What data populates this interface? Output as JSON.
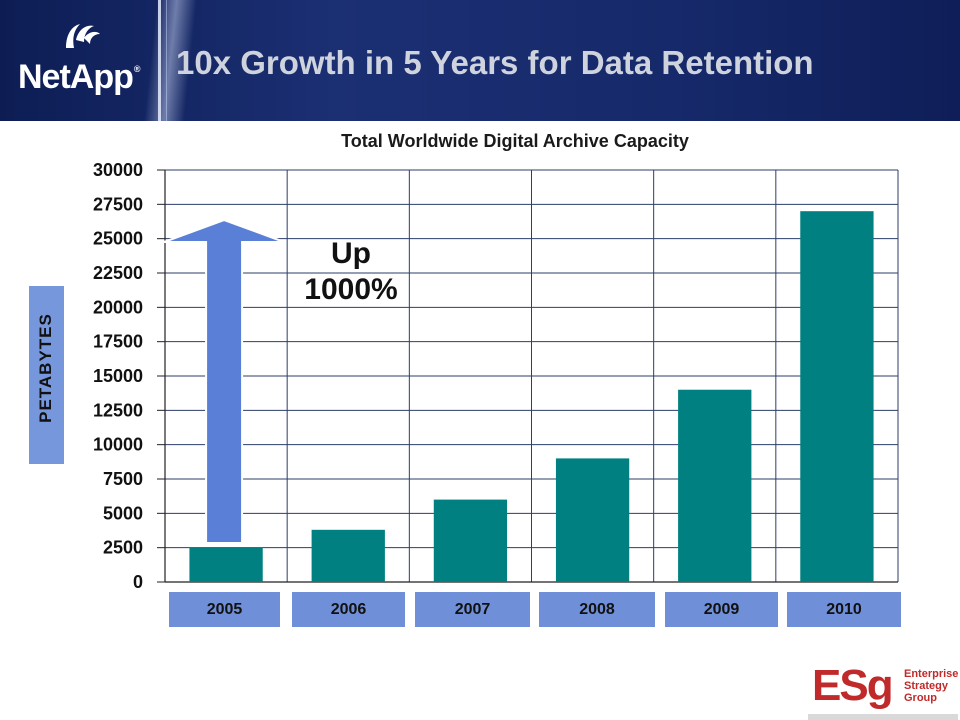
{
  "header": {
    "brand": "NetApp",
    "brand_mark": "®",
    "title": "10x Growth in 5 Years for Data Retention"
  },
  "chart_data": {
    "type": "bar",
    "title": "Total Worldwide Digital Archive Capacity",
    "ylabel": "PETABYTES",
    "xlabel": "",
    "categories": [
      "2005",
      "2006",
      "2007",
      "2008",
      "2009",
      "2010"
    ],
    "values": [
      2500,
      3800,
      6000,
      9000,
      14000,
      27000
    ],
    "ylim": [
      0,
      30000
    ],
    "yticks": [
      "30000",
      "27500",
      "25000",
      "22500",
      "20000",
      "17500",
      "15000",
      "12500",
      "10000",
      "7500",
      "5000",
      "2500",
      "0"
    ],
    "grid": true,
    "bar_color": "#008080",
    "annotation": {
      "line1": "Up",
      "line2": "1000%"
    },
    "arrow_color": "#5a7fd6"
  },
  "footer": {
    "logo_letters": "ESg",
    "logo_lines": [
      "Enterprise",
      "Strategy",
      "Group"
    ],
    "logo_color": "#c02a2a"
  }
}
